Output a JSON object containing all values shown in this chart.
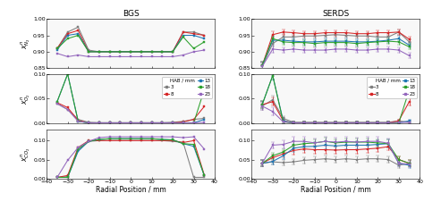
{
  "title_left": "BGS",
  "title_right": "SERDS",
  "xlabel": "Radial Position / mm",
  "colors": {
    "3": "#7f7f7f",
    "8": "#d62728",
    "13": "#1f77b4",
    "18": "#2ca02c",
    "23": "#9467bd"
  },
  "legend_labels": [
    "3",
    "8",
    "13",
    "18",
    "23"
  ],
  "x_positions": [
    -35,
    -30,
    -25,
    -20,
    -15,
    -10,
    -5,
    0,
    5,
    10,
    15,
    20,
    25,
    30,
    35
  ],
  "bgs_N2": {
    "3": [
      0.91,
      0.96,
      0.975,
      0.905,
      0.9,
      0.9,
      0.9,
      0.9,
      0.9,
      0.9,
      0.9,
      0.9,
      0.96,
      0.96,
      0.95
    ],
    "8": [
      0.91,
      0.955,
      0.965,
      0.9,
      0.9,
      0.9,
      0.9,
      0.9,
      0.9,
      0.9,
      0.9,
      0.9,
      0.96,
      0.955,
      0.95
    ],
    "13": [
      0.905,
      0.95,
      0.955,
      0.9,
      0.9,
      0.9,
      0.9,
      0.9,
      0.9,
      0.9,
      0.9,
      0.9,
      0.95,
      0.95,
      0.94
    ],
    "18": [
      0.91,
      0.94,
      0.95,
      0.9,
      0.9,
      0.9,
      0.9,
      0.9,
      0.9,
      0.9,
      0.9,
      0.9,
      0.945,
      0.91,
      0.93
    ],
    "23": [
      0.895,
      0.885,
      0.89,
      0.885,
      0.885,
      0.885,
      0.885,
      0.885,
      0.885,
      0.885,
      0.885,
      0.885,
      0.89,
      0.9,
      0.905
    ]
  },
  "bgs_O2": {
    "3": [
      0.04,
      0.028,
      0.008,
      0.002,
      0.001,
      0.001,
      0.001,
      0.001,
      0.001,
      0.001,
      0.001,
      0.002,
      0.004,
      0.008,
      0.01
    ],
    "8": [
      0.042,
      0.032,
      0.006,
      0.001,
      0.001,
      0.001,
      0.001,
      0.001,
      0.001,
      0.001,
      0.001,
      0.001,
      0.003,
      0.008,
      0.034
    ],
    "13": [
      0.044,
      0.1,
      0.004,
      0.001,
      0.001,
      0.001,
      0.001,
      0.001,
      0.001,
      0.001,
      0.001,
      0.001,
      0.001,
      0.001,
      0.008
    ],
    "18": [
      0.044,
      0.1,
      0.004,
      0.001,
      0.001,
      0.001,
      0.001,
      0.001,
      0.001,
      0.001,
      0.001,
      0.001,
      0.001,
      0.001,
      0.068
    ],
    "23": [
      0.04,
      0.028,
      0.004,
      0.001,
      0.001,
      0.001,
      0.001,
      0.001,
      0.001,
      0.001,
      0.001,
      0.001,
      0.001,
      0.001,
      0.002
    ]
  },
  "bgs_CO2": {
    "3": [
      0.003,
      0.005,
      0.075,
      0.098,
      0.1,
      0.1,
      0.1,
      0.1,
      0.1,
      0.1,
      0.1,
      0.098,
      0.095,
      0.003,
      0.003
    ],
    "8": [
      0.003,
      0.008,
      0.082,
      0.1,
      0.1,
      0.1,
      0.1,
      0.1,
      0.1,
      0.1,
      0.1,
      0.1,
      0.095,
      0.1,
      0.01
    ],
    "13": [
      0.003,
      0.003,
      0.072,
      0.098,
      0.103,
      0.105,
      0.105,
      0.105,
      0.105,
      0.105,
      0.103,
      0.102,
      0.092,
      0.085,
      0.008
    ],
    "18": [
      0.003,
      0.003,
      0.078,
      0.098,
      0.103,
      0.105,
      0.105,
      0.105,
      0.105,
      0.105,
      0.103,
      0.102,
      0.092,
      0.09,
      0.008
    ],
    "23": [
      0.003,
      0.048,
      0.082,
      0.098,
      0.108,
      0.11,
      0.11,
      0.11,
      0.11,
      0.11,
      0.11,
      0.11,
      0.108,
      0.11,
      0.078
    ]
  },
  "serds_N2": {
    "3": [
      0.855,
      0.925,
      0.945,
      0.945,
      0.948,
      0.948,
      0.95,
      0.952,
      0.95,
      0.948,
      0.948,
      0.945,
      0.945,
      0.96,
      0.93
    ],
    "8": [
      0.858,
      0.952,
      0.96,
      0.958,
      0.955,
      0.955,
      0.958,
      0.958,
      0.958,
      0.955,
      0.955,
      0.958,
      0.958,
      0.96,
      0.938
    ],
    "13": [
      0.858,
      0.935,
      0.935,
      0.932,
      0.93,
      0.93,
      0.932,
      0.932,
      0.932,
      0.93,
      0.93,
      0.932,
      0.935,
      0.94,
      0.92
    ],
    "18": [
      0.858,
      0.94,
      0.93,
      0.928,
      0.928,
      0.925,
      0.928,
      0.928,
      0.928,
      0.925,
      0.928,
      0.93,
      0.932,
      0.93,
      0.915
    ],
    "23": [
      0.855,
      0.908,
      0.905,
      0.908,
      0.905,
      0.905,
      0.905,
      0.908,
      0.908,
      0.905,
      0.905,
      0.908,
      0.908,
      0.905,
      0.888
    ]
  },
  "serds_O2": {
    "3": [
      0.035,
      0.048,
      0.01,
      0.002,
      0.002,
      0.002,
      0.002,
      0.002,
      0.002,
      0.002,
      0.002,
      0.002,
      0.002,
      0.005,
      0.002
    ],
    "8": [
      0.038,
      0.044,
      0.005,
      0.001,
      0.001,
      0.001,
      0.001,
      0.001,
      0.001,
      0.001,
      0.001,
      0.001,
      0.001,
      0.005,
      0.044
    ],
    "13": [
      0.038,
      0.097,
      0.005,
      0.001,
      0.001,
      0.001,
      0.001,
      0.001,
      0.001,
      0.001,
      0.001,
      0.001,
      0.001,
      0.001,
      0.005
    ],
    "18": [
      0.038,
      0.097,
      0.003,
      0.001,
      0.001,
      0.001,
      0.001,
      0.001,
      0.001,
      0.001,
      0.001,
      0.001,
      0.001,
      0.001,
      0.068
    ],
    "23": [
      0.035,
      0.024,
      0.003,
      0.001,
      0.001,
      0.001,
      0.001,
      0.001,
      0.001,
      0.001,
      0.001,
      0.001,
      0.001,
      0.002,
      0.002
    ]
  },
  "serds_CO2": {
    "3": [
      0.04,
      0.044,
      0.042,
      0.044,
      0.048,
      0.05,
      0.052,
      0.05,
      0.052,
      0.05,
      0.052,
      0.052,
      0.05,
      0.035,
      0.04
    ],
    "8": [
      0.04,
      0.055,
      0.065,
      0.074,
      0.078,
      0.076,
      0.076,
      0.075,
      0.076,
      0.076,
      0.078,
      0.08,
      0.084,
      0.05,
      0.04
    ],
    "13": [
      0.04,
      0.045,
      0.06,
      0.08,
      0.084,
      0.085,
      0.088,
      0.086,
      0.088,
      0.088,
      0.088,
      0.09,
      0.092,
      0.04,
      0.035
    ],
    "18": [
      0.04,
      0.06,
      0.07,
      0.088,
      0.092,
      0.094,
      0.098,
      0.094,
      0.096,
      0.096,
      0.096,
      0.094,
      0.092,
      0.05,
      0.04
    ],
    "23": [
      0.04,
      0.088,
      0.09,
      0.098,
      0.098,
      0.094,
      0.098,
      0.096,
      0.098,
      0.096,
      0.098,
      0.098,
      0.093,
      0.04,
      0.038
    ]
  },
  "serds_N2_err": {
    "3": [
      0.012,
      0.01,
      0.008,
      0.008,
      0.008,
      0.008,
      0.008,
      0.008,
      0.008,
      0.008,
      0.008,
      0.008,
      0.008,
      0.008,
      0.008
    ],
    "8": [
      0.012,
      0.01,
      0.008,
      0.008,
      0.008,
      0.008,
      0.008,
      0.008,
      0.008,
      0.008,
      0.008,
      0.008,
      0.008,
      0.008,
      0.008
    ],
    "13": [
      0.012,
      0.01,
      0.008,
      0.008,
      0.008,
      0.008,
      0.008,
      0.008,
      0.008,
      0.008,
      0.008,
      0.008,
      0.008,
      0.008,
      0.008
    ],
    "18": [
      0.012,
      0.01,
      0.008,
      0.008,
      0.008,
      0.008,
      0.008,
      0.008,
      0.008,
      0.008,
      0.008,
      0.008,
      0.008,
      0.008,
      0.008
    ],
    "23": [
      0.012,
      0.01,
      0.008,
      0.008,
      0.008,
      0.008,
      0.008,
      0.008,
      0.008,
      0.008,
      0.008,
      0.008,
      0.008,
      0.008,
      0.008
    ]
  },
  "serds_O2_err": {
    "3": [
      0.008,
      0.008,
      0.005,
      0.002,
      0.002,
      0.002,
      0.002,
      0.002,
      0.002,
      0.002,
      0.002,
      0.002,
      0.002,
      0.003,
      0.003
    ],
    "8": [
      0.008,
      0.008,
      0.005,
      0.002,
      0.002,
      0.002,
      0.002,
      0.002,
      0.002,
      0.002,
      0.002,
      0.002,
      0.002,
      0.003,
      0.008
    ],
    "13": [
      0.008,
      0.008,
      0.005,
      0.002,
      0.002,
      0.002,
      0.002,
      0.002,
      0.002,
      0.002,
      0.002,
      0.002,
      0.002,
      0.003,
      0.003
    ],
    "18": [
      0.008,
      0.008,
      0.005,
      0.002,
      0.002,
      0.002,
      0.002,
      0.002,
      0.002,
      0.002,
      0.002,
      0.002,
      0.002,
      0.003,
      0.008
    ],
    "23": [
      0.008,
      0.008,
      0.005,
      0.002,
      0.002,
      0.002,
      0.002,
      0.002,
      0.002,
      0.002,
      0.002,
      0.002,
      0.002,
      0.003,
      0.003
    ]
  },
  "serds_CO2_err": {
    "3": [
      0.008,
      0.008,
      0.008,
      0.008,
      0.008,
      0.008,
      0.008,
      0.008,
      0.008,
      0.008,
      0.008,
      0.008,
      0.008,
      0.008,
      0.008
    ],
    "8": [
      0.008,
      0.008,
      0.008,
      0.01,
      0.01,
      0.01,
      0.01,
      0.01,
      0.01,
      0.01,
      0.01,
      0.01,
      0.01,
      0.008,
      0.008
    ],
    "13": [
      0.008,
      0.008,
      0.008,
      0.01,
      0.01,
      0.01,
      0.01,
      0.01,
      0.01,
      0.01,
      0.01,
      0.01,
      0.01,
      0.008,
      0.008
    ],
    "18": [
      0.008,
      0.008,
      0.008,
      0.01,
      0.01,
      0.01,
      0.01,
      0.01,
      0.01,
      0.01,
      0.01,
      0.01,
      0.01,
      0.008,
      0.008
    ],
    "23": [
      0.008,
      0.008,
      0.01,
      0.012,
      0.012,
      0.012,
      0.012,
      0.012,
      0.012,
      0.012,
      0.012,
      0.012,
      0.012,
      0.008,
      0.008
    ]
  }
}
